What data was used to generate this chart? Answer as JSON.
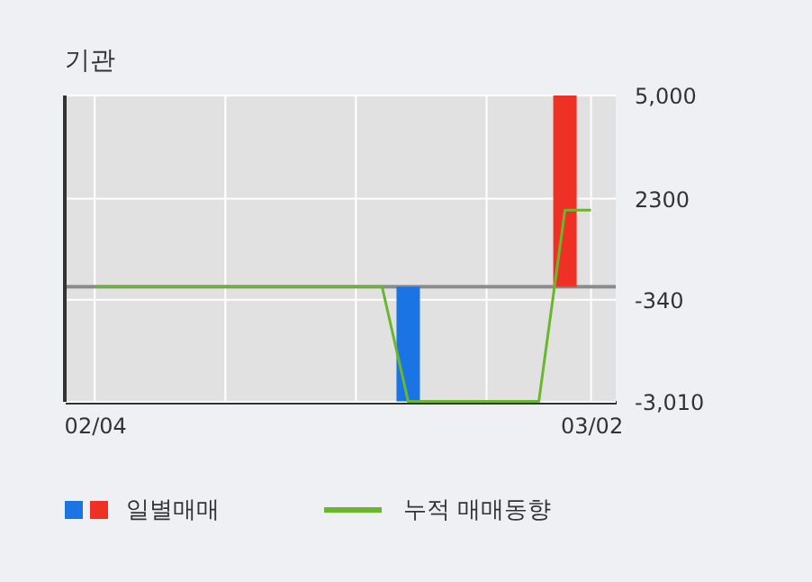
{
  "chart_data": {
    "type": "bar",
    "title": "기관",
    "categories": [
      "02/04",
      null,
      null,
      null,
      null,
      null,
      null,
      null,
      null,
      null,
      null,
      null,
      null,
      null,
      null,
      null,
      null,
      null,
      null,
      "03/02"
    ],
    "series": [
      {
        "name": "일별매매",
        "colors": [
          "#ee3124",
          "#ee3124",
          "#ee3124",
          "#ee3124",
          "#ee3124",
          "#ee3124",
          "#ee3124",
          "#ee3124",
          "#ee3124",
          "#ee3124",
          "#ee3124",
          "#ee3124",
          "#1b74e4",
          "#ee3124",
          "#ee3124",
          "#ee3124",
          "#ee3124",
          "#ee3124",
          "#ee3124",
          "#ee3124"
        ],
        "values": [
          0,
          0,
          0,
          0,
          0,
          0,
          0,
          0,
          0,
          0,
          0,
          0,
          -3000,
          0,
          0,
          0,
          0,
          0,
          5000,
          0
        ]
      },
      {
        "name": "누적 매매동향",
        "type": "line",
        "color": "#6ab72c",
        "values": [
          0,
          0,
          0,
          0,
          0,
          0,
          0,
          0,
          0,
          0,
          0,
          0,
          -3000,
          -3000,
          -3000,
          -3000,
          -3000,
          -3000,
          2000,
          2000
        ]
      }
    ],
    "ylim": [
      -3010,
      5000
    ],
    "yticks": [
      {
        "value": 5000,
        "label": "5,000"
      },
      2300,
      -340,
      {
        "value": -3010,
        "label": "-3,010"
      }
    ],
    "ref_lines": [
      {
        "axis": "y",
        "value": 0,
        "color": "#8c8c8c"
      }
    ],
    "grid": true,
    "legend": "bottom"
  }
}
